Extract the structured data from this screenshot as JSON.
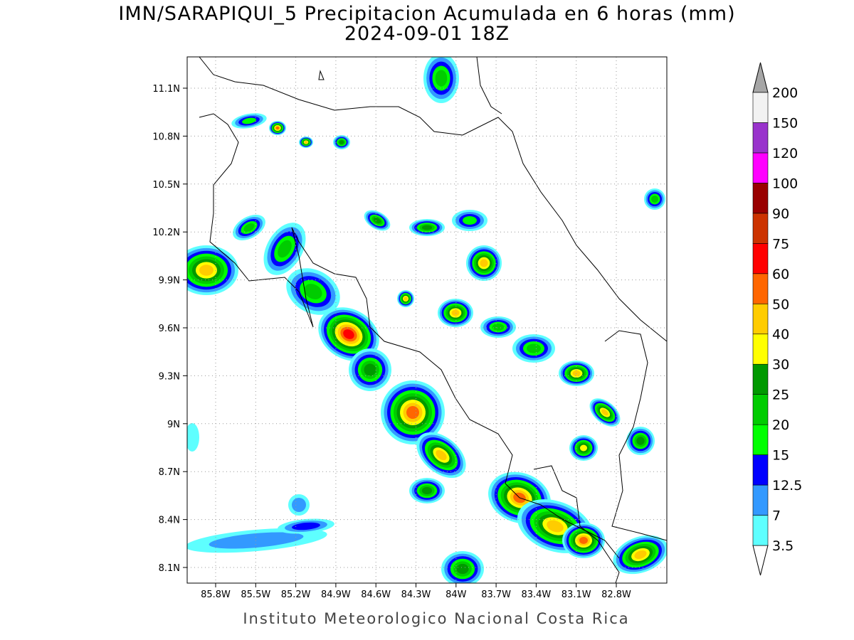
{
  "title": "IMN/SARAPIQUI_5 Precipitacion Acumulada en 6 horas (mm)",
  "subtitle": "2024-09-01 18Z",
  "map": {
    "lat_labels": [
      "11.1N",
      "10.8N",
      "10.5N",
      "10.2N",
      "9.9N",
      "9.6N",
      "9.3N",
      "9N",
      "8.7N",
      "8.4N",
      "8.1N"
    ],
    "lon_labels": [
      "85.8W",
      "85.5W",
      "85.2W",
      "84.9W",
      "84.6W",
      "84.3W",
      "84W",
      "83.7W",
      "83.4W",
      "83.1W",
      "82.8W"
    ]
  },
  "colorbar": {
    "levels": [
      3.5,
      7,
      12.5,
      15,
      20,
      25,
      30,
      40,
      50,
      60,
      75,
      90,
      100,
      120,
      150,
      200
    ],
    "colors": [
      "#5effff",
      "#3399ff",
      "#0000ff",
      "#00ff00",
      "#00cc00",
      "#009900",
      "#ffff00",
      "#ffcc00",
      "#ff6600",
      "#ff0000",
      "#cc3300",
      "#990000",
      "#ff00ff",
      "#9933cc",
      "#f2f2f2"
    ],
    "below_color": "#ffffff",
    "above_color": "#a6a6a6"
  },
  "footer": "Instituto Meteorologico Nacional Costa Rica"
}
